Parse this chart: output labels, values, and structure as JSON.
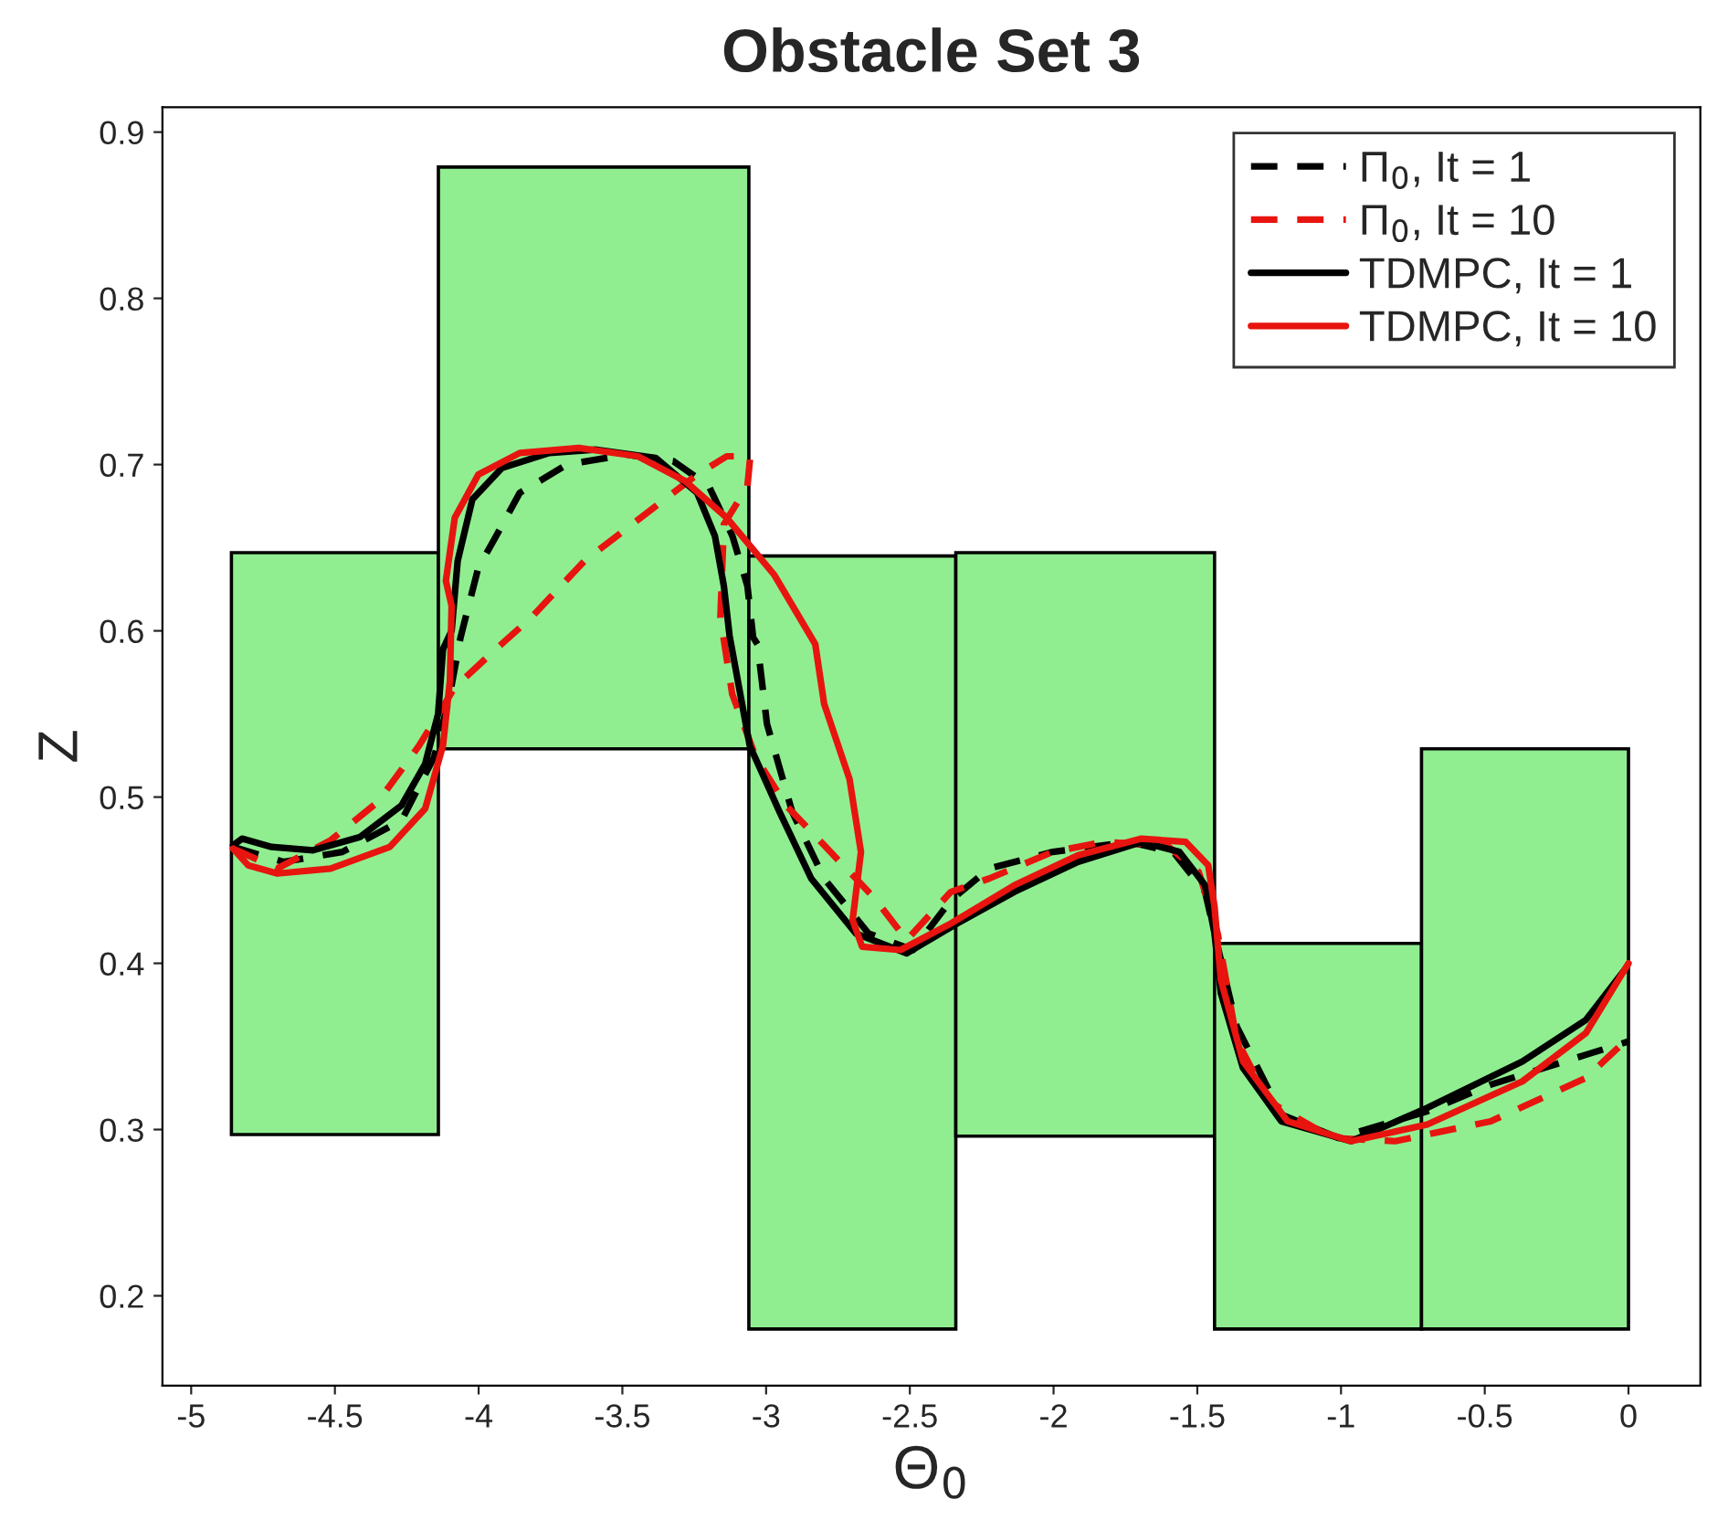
{
  "chart_data": {
    "type": "line",
    "title": "Obstacle Set 3",
    "xlabel": "Θ$_{0}$",
    "ylabel": "Z",
    "xlim": [
      -5.1,
      0.25
    ],
    "ylim": [
      0.146,
      0.915
    ],
    "xticks": [
      -5,
      -4.5,
      -4,
      -3.5,
      -3,
      -2.5,
      -2,
      -1.5,
      -1,
      -0.5,
      0
    ],
    "yticks": [
      0.2,
      0.3,
      0.4,
      0.5,
      0.6,
      0.7,
      0.8,
      0.9
    ],
    "grid": false,
    "legend": "top right",
    "series": [
      {
        "type": "histogram",
        "color": "#90ee90",
        "bins": [
          -4.86,
          -4.14,
          -3.06,
          -2.34,
          -1.44,
          -0.72,
          0
        ],
        "base": [
          0.297,
          0.529,
          0.18,
          0.296,
          0.18,
          0.18
        ],
        "values": [
          0.35,
          0.35,
          0.465,
          0.351,
          0.232,
          0.349
        ]
      },
      {
        "name": "Π$_{0}$, It = 1",
        "line_style": "dashed",
        "color": "#000000",
        "x": [
          -4.854,
          -4.679,
          -4.474,
          -4.268,
          -4.155,
          -4.104,
          -4.063,
          -4.001,
          -3.939,
          -3.857,
          -3.693,
          -3.487,
          -3.322,
          -3.199,
          -3.117,
          -3.065,
          -3.045,
          -3.03,
          -2.997,
          -2.909,
          -2.798,
          -2.644,
          -2.489,
          -2.357,
          -2.224,
          -2.003,
          -1.738,
          -1.584,
          -1.473,
          -1.429,
          -1.363,
          -1.208,
          -1.01,
          -0.7,
          -0.479,
          -0.148,
          0.0
        ],
        "values": [
          0.47,
          0.461,
          0.467,
          0.486,
          0.524,
          0.558,
          0.596,
          0.638,
          0.657,
          0.683,
          0.7,
          0.706,
          0.702,
          0.687,
          0.657,
          0.627,
          0.596,
          0.592,
          0.544,
          0.491,
          0.451,
          0.418,
          0.408,
          0.438,
          0.457,
          0.467,
          0.473,
          0.467,
          0.443,
          0.41,
          0.362,
          0.309,
          0.295,
          0.311,
          0.327,
          0.345,
          0.353
        ]
      },
      {
        "name": "Π$_{0}$, It = 10",
        "line_style": "dashed",
        "color": "#e8140f",
        "x": [
          -4.854,
          -4.7,
          -4.515,
          -4.351,
          -4.207,
          -4.083,
          -3.94,
          -3.817,
          -3.632,
          -3.384,
          -3.24,
          -3.137,
          -3.055,
          -3.065,
          -3.147,
          -3.159,
          -3.118,
          -3.036,
          -2.931,
          -2.798,
          -2.622,
          -2.511,
          -2.357,
          -2.224,
          -2.003,
          -1.827,
          -1.606,
          -1.495,
          -1.429,
          -1.363,
          -1.252,
          -1.032,
          -0.811,
          -0.479,
          -0.148,
          0.0
        ],
        "values": [
          0.469,
          0.457,
          0.474,
          0.497,
          0.531,
          0.566,
          0.589,
          0.608,
          0.642,
          0.675,
          0.694,
          0.705,
          0.705,
          0.687,
          0.664,
          0.608,
          0.562,
          0.524,
          0.495,
          0.471,
          0.439,
          0.414,
          0.443,
          0.451,
          0.467,
          0.473,
          0.471,
          0.455,
          0.418,
          0.354,
          0.317,
          0.295,
          0.293,
          0.305,
          0.331,
          0.355
        ]
      },
      {
        "name": "TDMPC, It = 1",
        "line_style": "solid",
        "color": "#000000",
        "x": [
          -4.854,
          -4.823,
          -4.72,
          -4.576,
          -4.412,
          -4.268,
          -4.186,
          -4.141,
          -4.124,
          -4.094,
          -4.073,
          -4.022,
          -3.919,
          -3.754,
          -3.59,
          -3.384,
          -3.24,
          -3.178,
          -3.147,
          -3.127,
          -3.057,
          -2.953,
          -2.843,
          -2.688,
          -2.511,
          -2.335,
          -2.136,
          -1.915,
          -1.694,
          -1.562,
          -1.473,
          -1.44,
          -1.418,
          -1.341,
          -1.208,
          -0.965,
          -0.7,
          -0.369,
          -0.148,
          -0.005
        ],
        "values": [
          0.471,
          0.475,
          0.47,
          0.468,
          0.476,
          0.495,
          0.52,
          0.55,
          0.589,
          0.6,
          0.642,
          0.679,
          0.698,
          0.707,
          0.709,
          0.704,
          0.683,
          0.657,
          0.627,
          0.597,
          0.531,
          0.491,
          0.451,
          0.418,
          0.406,
          0.424,
          0.443,
          0.461,
          0.473,
          0.467,
          0.447,
          0.418,
          0.382,
          0.337,
          0.305,
          0.293,
          0.313,
          0.341,
          0.366,
          0.398
        ]
      },
      {
        "name": "TDMPC, It = 10",
        "line_style": "solid",
        "color": "#e8140f",
        "x": [
          -4.854,
          -4.802,
          -4.7,
          -4.515,
          -4.309,
          -4.186,
          -4.124,
          -4.1,
          -4.094,
          -4.114,
          -4.083,
          -4.001,
          -3.857,
          -3.651,
          -3.446,
          -3.281,
          -3.137,
          -2.973,
          -2.829,
          -2.798,
          -2.71,
          -2.67,
          -2.699,
          -2.666,
          -2.533,
          -2.357,
          -2.136,
          -1.915,
          -1.694,
          -1.54,
          -1.462,
          -1.44,
          -1.418,
          -1.341,
          -1.186,
          -0.965,
          -0.7,
          -0.369,
          -0.148,
          0.0
        ],
        "values": [
          0.469,
          0.459,
          0.454,
          0.457,
          0.47,
          0.493,
          0.531,
          0.57,
          0.615,
          0.63,
          0.668,
          0.694,
          0.707,
          0.71,
          0.705,
          0.69,
          0.668,
          0.634,
          0.592,
          0.556,
          0.511,
          0.467,
          0.426,
          0.41,
          0.408,
          0.424,
          0.447,
          0.465,
          0.475,
          0.473,
          0.459,
          0.434,
          0.39,
          0.341,
          0.305,
          0.293,
          0.303,
          0.329,
          0.358,
          0.4
        ]
      }
    ]
  }
}
